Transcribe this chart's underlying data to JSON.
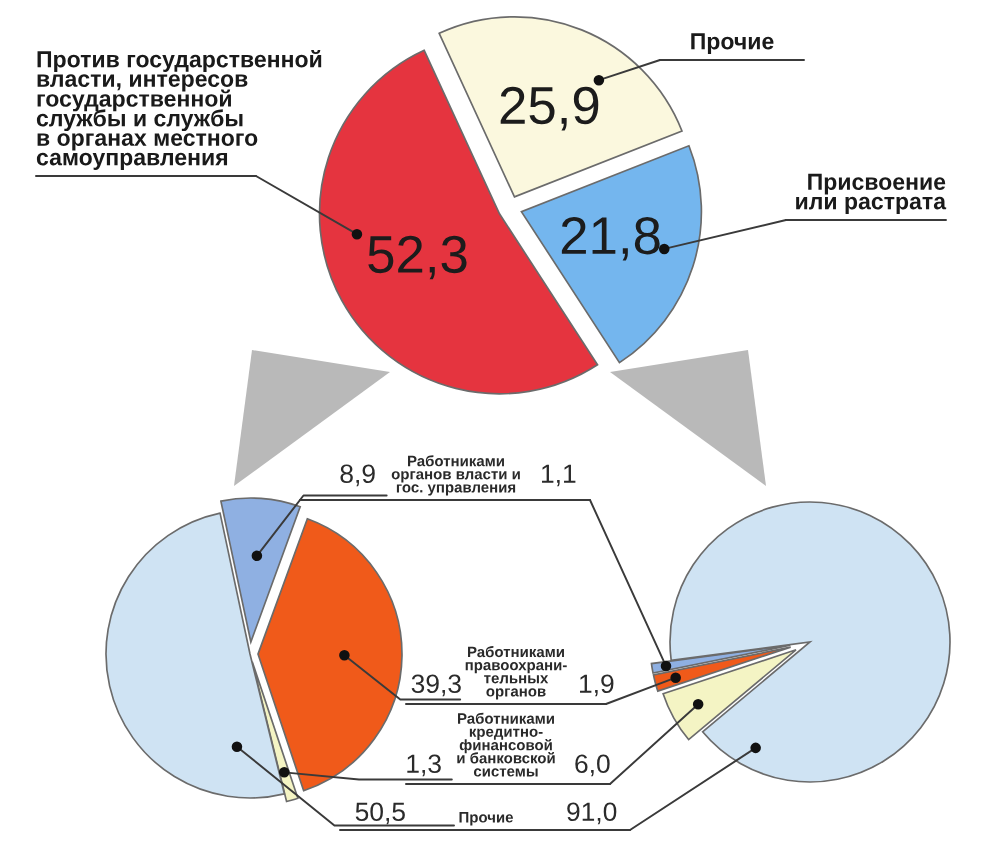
{
  "chart_data": [
    {
      "type": "pie",
      "categories": [
        "Против государственной\nвласти, интересов\nгосударственной\nслужбы и службы\nв органах местного\nсамоуправления",
        "Прочие",
        "Присвоение\nили растрата"
      ],
      "values": [
        52.3,
        25.9,
        21.8
      ],
      "colors": [
        "#e5343f",
        "#fbf8de",
        "#74b6ee"
      ],
      "value_labels": [
        "52,3",
        "25,9",
        "21,8"
      ]
    },
    {
      "type": "pie",
      "categories": [
        "Работниками\nорганов власти и\nгос. управления",
        "Работниками\nправоохрани-\nтельных\nорганов",
        "Работниками\nкредитно-\nфинансовой\nи банковской\nсистемы",
        "Прочие"
      ],
      "colors": [
        "#8fb0e2",
        "#f05a1a",
        "#f4f4c4",
        "#cfe3f3"
      ],
      "series": [
        {
          "values": [
            8.9,
            39.3,
            1.3,
            50.5
          ],
          "value_labels": [
            "8,9",
            "39,3",
            "1,3",
            "50,5"
          ]
        },
        {
          "values": [
            1.1,
            1.9,
            6.0,
            91.0
          ],
          "value_labels": [
            "1,1",
            "1,9",
            "6,0",
            "91,0"
          ]
        }
      ]
    }
  ]
}
